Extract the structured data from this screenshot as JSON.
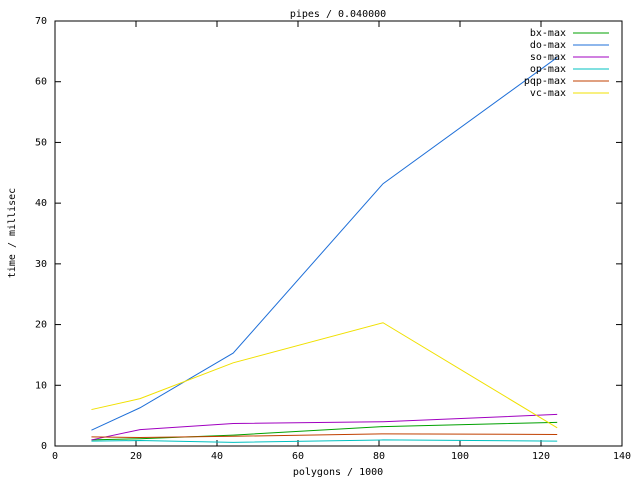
{
  "chart_data": {
    "type": "line",
    "title": "pipes / 0.040000",
    "x_label": "polygons / 1000",
    "y_label": "time / millisec",
    "x": [
      9,
      21,
      44,
      81,
      124
    ],
    "series": [
      {
        "name": "bx-max",
        "color": "#00a000",
        "values": [
          1.0,
          1.2,
          1.8,
          3.2,
          3.9
        ]
      },
      {
        "name": "do-max",
        "color": "#1e6fd8",
        "values": [
          2.6,
          6.3,
          15.3,
          43.2,
          64
        ]
      },
      {
        "name": "so-max",
        "color": "#a000c0",
        "values": [
          1.0,
          2.7,
          3.7,
          4.0,
          5.2
        ]
      },
      {
        "name": "op-max",
        "color": "#00c0c0",
        "values": [
          0.8,
          0.9,
          0.6,
          1.0,
          0.8
        ]
      },
      {
        "name": "pqp-max",
        "color": "#c04000",
        "values": [
          1.5,
          1.4,
          1.6,
          2.0,
          1.9
        ]
      },
      {
        "name": "vc-max",
        "color": "#f0e000",
        "values": [
          6.0,
          7.8,
          13.7,
          20.3,
          3.0
        ]
      }
    ],
    "xlim": [
      0,
      140
    ],
    "xticks": [
      0,
      20,
      40,
      60,
      80,
      100,
      120,
      140
    ],
    "ylim": [
      0,
      70
    ],
    "yticks": [
      0,
      10,
      20,
      30,
      40,
      50,
      60,
      70
    ],
    "grid": false,
    "legend": "top-right"
  }
}
